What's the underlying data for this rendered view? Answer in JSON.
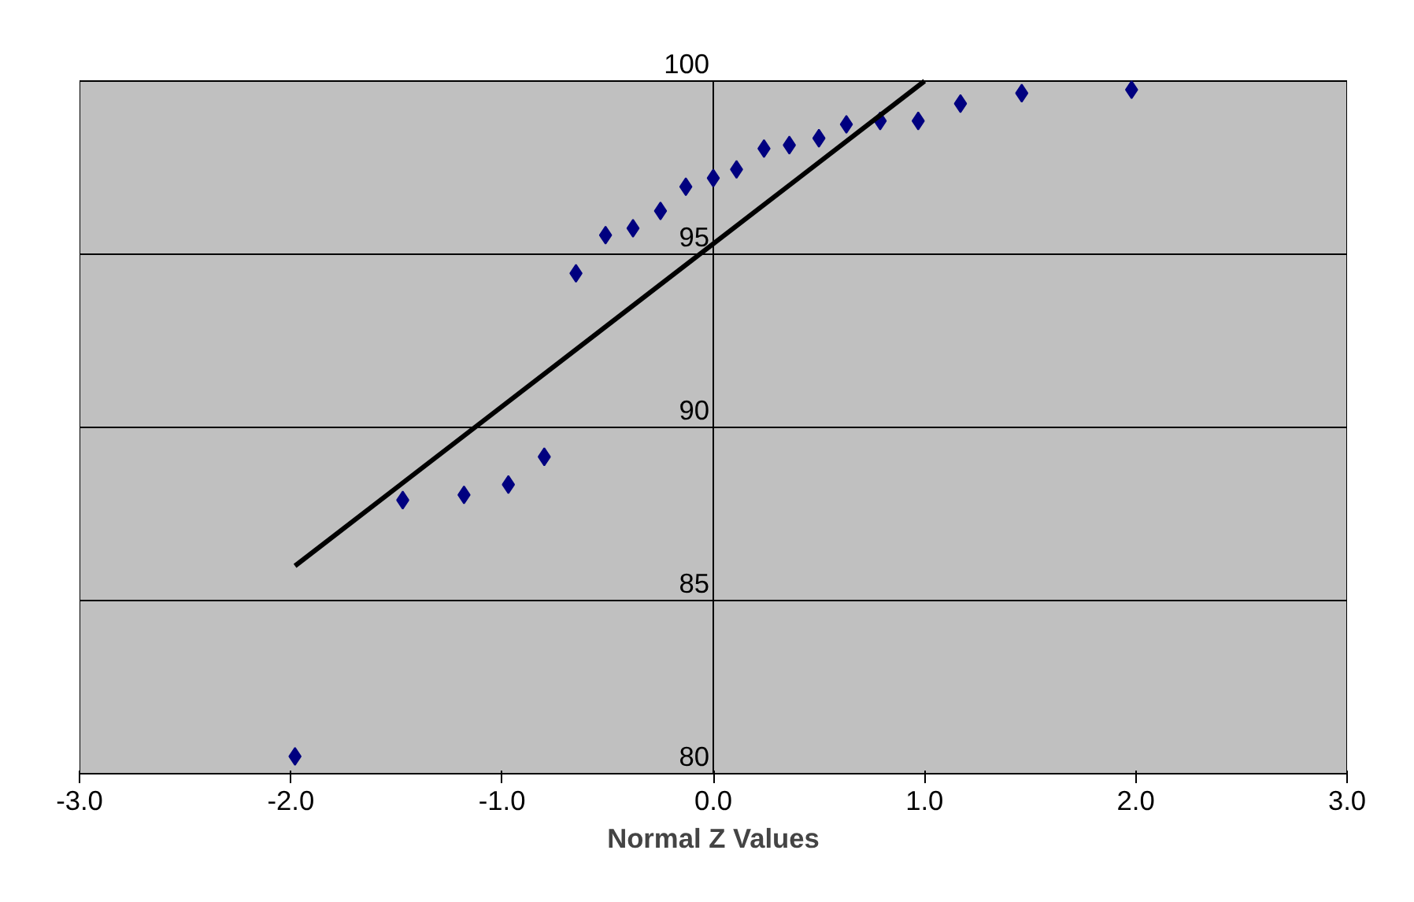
{
  "chart_data": {
    "type": "scatter",
    "xlabel": "Normal Z Values",
    "xlim": [
      -3,
      3
    ],
    "xticks": [
      {
        "value": -3,
        "label": "-3.0"
      },
      {
        "value": -2,
        "label": "-2.0"
      },
      {
        "value": -1,
        "label": "-1.0"
      },
      {
        "value": 0,
        "label": "0.0"
      },
      {
        "value": 1,
        "label": "1.0"
      },
      {
        "value": 2,
        "label": "2.0"
      },
      {
        "value": 3,
        "label": "3.0"
      }
    ],
    "ylim": [
      80,
      100
    ],
    "yticks": [
      80,
      85,
      90,
      95,
      100
    ],
    "grid": "y",
    "marker": "diamond",
    "series": [
      {
        "type": "scatter",
        "color": "#000080",
        "x": [
          -1.98,
          -1.47,
          -1.18,
          -0.97,
          -0.8,
          -0.65,
          -0.51,
          -0.38,
          -0.25,
          -0.13,
          0.0,
          0.11,
          0.24,
          0.36,
          0.5,
          0.63,
          0.79,
          0.97,
          1.17,
          1.46,
          1.98
        ],
        "values": [
          80.5,
          87.9,
          88.05,
          88.35,
          89.15,
          94.45,
          95.55,
          95.75,
          96.25,
          96.95,
          97.2,
          97.45,
          98.05,
          98.15,
          98.35,
          98.75,
          98.85,
          98.85,
          99.35,
          99.65,
          99.75
        ]
      },
      {
        "type": "line",
        "marker": "none",
        "color": "#000000",
        "x": [
          -1.98,
          1.0
        ],
        "values": [
          86.0,
          100.0
        ]
      }
    ]
  }
}
